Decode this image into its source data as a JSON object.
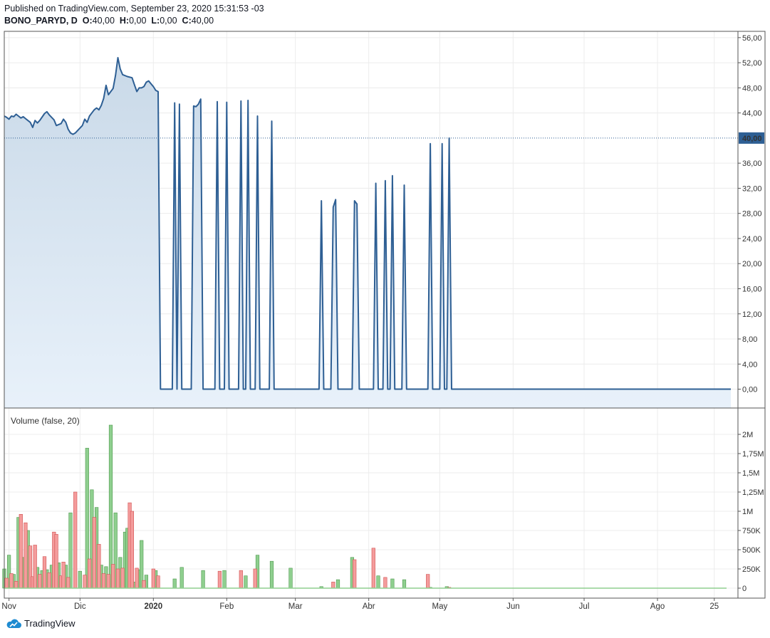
{
  "header": {
    "published": "Published on TradingView.com, September 23, 2020 15:31:53 -03",
    "symbol": "BONO_PARYD, D",
    "ohlc": [
      {
        "k": "O:",
        "v": "40,00"
      },
      {
        "k": "H:",
        "v": "0,00"
      },
      {
        "k": "L:",
        "v": "0,00"
      },
      {
        "k": "C:",
        "v": "40,00"
      }
    ]
  },
  "footer": {
    "brand": "TradingView",
    "logo_icon": "tradingview-cloud-icon"
  },
  "colors": {
    "line": "#2e5f94",
    "area_top": "#c9d9e8",
    "area_bottom": "#e8f1fa",
    "up": "#8fcf8f",
    "up_border": "#4f9a4f",
    "down": "#f49c9c",
    "down_border": "#d05050",
    "grid": "#ececec",
    "last_price_bg": "#2e5f94"
  },
  "chart_data": [
    {
      "type": "area",
      "symbol": "BONO_PARYD",
      "interval": "D",
      "last_value_label": "40,00",
      "y_axis": {
        "ticks": [
          "0,00",
          "4,00",
          "8,00",
          "12,00",
          "16,00",
          "20,00",
          "24,00",
          "28,00",
          "32,00",
          "36,00",
          "44,00",
          "48,00",
          "52,00",
          "56,00"
        ],
        "ylim": [
          -3,
          57
        ]
      },
      "x_axis": {
        "ticks": [
          {
            "label": "Nov",
            "date": "2019-11-01"
          },
          {
            "label": "Dic",
            "date": "2019-12-01"
          },
          {
            "label": "2020",
            "date": "2020-01-01"
          },
          {
            "label": "Feb",
            "date": "2020-02-01"
          },
          {
            "label": "Mar",
            "date": "2020-03-01"
          },
          {
            "label": "Abr",
            "date": "2020-04-01"
          },
          {
            "label": "May",
            "date": "2020-05-01"
          },
          {
            "label": "Jun",
            "date": "2020-06-01"
          },
          {
            "label": "Jul",
            "date": "2020-07-01"
          },
          {
            "label": "Ago",
            "date": "2020-08-01"
          },
          {
            "label": "25",
            "date": "2020-08-25"
          }
        ],
        "range": [
          "2019-10-30",
          "2020-09-04"
        ]
      },
      "price": [
        [
          "2019-10-30",
          43.5
        ],
        [
          "2019-10-31",
          43.3
        ],
        [
          "2019-11-01",
          43.0
        ],
        [
          "2019-11-02",
          43.5
        ],
        [
          "2019-11-03",
          43.4
        ],
        [
          "2019-11-04",
          43.8
        ],
        [
          "2019-11-05",
          43.5
        ],
        [
          "2019-11-06",
          43.2
        ],
        [
          "2019-11-07",
          43.4
        ],
        [
          "2019-11-08",
          43.1
        ],
        [
          "2019-11-10",
          42.5
        ],
        [
          "2019-11-11",
          41.7
        ],
        [
          "2019-11-12",
          42.8
        ],
        [
          "2019-11-13",
          42.4
        ],
        [
          "2019-11-14",
          42.8
        ],
        [
          "2019-11-16",
          43.9
        ],
        [
          "2019-11-17",
          44.2
        ],
        [
          "2019-11-18",
          43.7
        ],
        [
          "2019-11-20",
          42.9
        ],
        [
          "2019-11-21",
          42.0
        ],
        [
          "2019-11-23",
          42.3
        ],
        [
          "2019-11-24",
          43.0
        ],
        [
          "2019-11-25",
          42.5
        ],
        [
          "2019-11-26",
          41.4
        ],
        [
          "2019-11-27",
          40.8
        ],
        [
          "2019-11-28",
          40.6
        ],
        [
          "2019-11-29",
          40.8
        ],
        [
          "2019-11-30",
          41.2
        ],
        [
          "2019-12-02",
          42.0
        ],
        [
          "2019-12-03",
          43.0
        ],
        [
          "2019-12-04",
          42.5
        ],
        [
          "2019-12-05",
          43.5
        ],
        [
          "2019-12-07",
          44.5
        ],
        [
          "2019-12-08",
          44.8
        ],
        [
          "2019-12-09",
          44.5
        ],
        [
          "2019-12-10",
          45.2
        ],
        [
          "2019-12-11",
          46.3
        ],
        [
          "2019-12-12",
          48.4
        ],
        [
          "2019-12-13",
          46.9
        ],
        [
          "2019-12-15",
          47.9
        ],
        [
          "2019-12-16",
          50.0
        ],
        [
          "2019-12-17",
          52.8
        ],
        [
          "2019-12-18",
          51.0
        ],
        [
          "2019-12-19",
          50.1
        ],
        [
          "2019-12-21",
          49.8
        ],
        [
          "2019-12-23",
          49.6
        ],
        [
          "2019-12-24",
          48.5
        ],
        [
          "2019-12-25",
          47.4
        ],
        [
          "2019-12-26",
          48.0
        ],
        [
          "2019-12-27",
          48.0
        ],
        [
          "2019-12-28",
          48.2
        ],
        [
          "2019-12-29",
          48.9
        ],
        [
          "2019-12-30",
          49.1
        ],
        [
          "2020-01-01",
          48.2
        ],
        [
          "2020-01-02",
          47.6
        ],
        [
          "2020-01-03",
          47.4
        ],
        [
          "2020-01-04",
          0
        ],
        [
          "2020-01-09",
          0
        ],
        [
          "2020-01-10",
          45.6
        ],
        [
          "2020-01-11",
          0
        ],
        [
          "2020-01-12",
          45.4
        ],
        [
          "2020-01-13",
          0
        ],
        [
          "2020-01-17",
          0
        ],
        [
          "2020-01-18",
          45.1
        ],
        [
          "2020-01-19",
          45.0
        ],
        [
          "2020-01-20",
          45.4
        ],
        [
          "2020-01-21",
          46.2
        ],
        [
          "2020-01-22",
          0
        ],
        [
          "2020-01-27",
          0
        ],
        [
          "2020-01-28",
          45.8
        ],
        [
          "2020-01-29",
          0
        ],
        [
          "2020-01-31",
          0
        ],
        [
          "2020-02-01",
          45.7
        ],
        [
          "2020-02-02",
          0
        ],
        [
          "2020-02-06",
          0
        ],
        [
          "2020-02-07",
          45.9
        ],
        [
          "2020-02-08",
          0
        ],
        [
          "2020-02-09",
          0
        ],
        [
          "2020-02-10",
          46.0
        ],
        [
          "2020-02-11",
          0
        ],
        [
          "2020-02-13",
          0
        ],
        [
          "2020-02-14",
          43.5
        ],
        [
          "2020-02-15",
          0
        ],
        [
          "2020-02-19",
          0
        ],
        [
          "2020-02-20",
          42.7
        ],
        [
          "2020-02-21",
          0
        ],
        [
          "2020-03-11",
          0
        ],
        [
          "2020-03-12",
          30.0
        ],
        [
          "2020-03-13",
          0
        ],
        [
          "2020-03-16",
          0
        ],
        [
          "2020-03-17",
          29.0
        ],
        [
          "2020-03-18",
          30.2
        ],
        [
          "2020-03-19",
          0
        ],
        [
          "2020-03-25",
          0
        ],
        [
          "2020-03-26",
          30.0
        ],
        [
          "2020-03-27",
          29.5
        ],
        [
          "2020-03-28",
          0
        ],
        [
          "2020-04-03",
          0
        ],
        [
          "2020-04-04",
          32.8
        ],
        [
          "2020-04-05",
          0
        ],
        [
          "2020-04-07",
          0
        ],
        [
          "2020-04-08",
          33.2
        ],
        [
          "2020-04-09",
          0
        ],
        [
          "2020-04-10",
          0
        ],
        [
          "2020-04-11",
          34.0
        ],
        [
          "2020-04-12",
          0
        ],
        [
          "2020-04-15",
          0
        ],
        [
          "2020-04-16",
          32.5
        ],
        [
          "2020-04-17",
          0
        ],
        [
          "2020-04-26",
          0
        ],
        [
          "2020-04-27",
          39.1
        ],
        [
          "2020-04-28",
          0
        ],
        [
          "2020-05-01",
          0
        ],
        [
          "2020-05-02",
          39.1
        ],
        [
          "2020-05-03",
          0
        ],
        [
          "2020-05-04",
          0
        ],
        [
          "2020-05-05",
          40.0
        ],
        [
          "2020-05-06",
          0
        ],
        [
          "2020-09-01",
          0
        ]
      ]
    },
    {
      "type": "bar",
      "title": "Volume (false, 20)",
      "y_axis": {
        "ticks": [
          "0",
          "250K",
          "500K",
          "750K",
          "1M",
          "1,25M",
          "1,5M",
          "1,75M",
          "2M"
        ],
        "ylim": [
          0,
          2250000
        ]
      },
      "series": [
        {
          "name": "up",
          "color": "#8fcf8f",
          "values": [
            [
              "2019-10-30",
              250000
            ],
            [
              "2019-11-01",
              430000
            ],
            [
              "2019-11-03",
              180000
            ],
            [
              "2019-11-05",
              920000
            ],
            [
              "2019-11-07",
              400000
            ],
            [
              "2019-11-09",
              750000
            ],
            [
              "2019-11-13",
              270000
            ],
            [
              "2019-11-15",
              230000
            ],
            [
              "2019-11-17",
              240000
            ],
            [
              "2019-11-19",
              300000
            ],
            [
              "2019-11-22",
              330000
            ],
            [
              "2019-11-25",
              300000
            ],
            [
              "2019-11-27",
              980000
            ],
            [
              "2019-12-01",
              220000
            ],
            [
              "2019-12-04",
              1820000
            ],
            [
              "2019-12-06",
              1280000
            ],
            [
              "2019-12-08",
              1050000
            ],
            [
              "2019-12-10",
              300000
            ],
            [
              "2019-12-12",
              280000
            ],
            [
              "2019-12-14",
              2120000
            ],
            [
              "2019-12-16",
              980000
            ],
            [
              "2019-12-18",
              400000
            ],
            [
              "2019-12-20",
              730000
            ],
            [
              "2019-12-21",
              780000
            ],
            [
              "2019-12-24",
              80000
            ],
            [
              "2019-12-26",
              240000
            ],
            [
              "2019-12-27",
              620000
            ],
            [
              "2019-12-29",
              170000
            ],
            [
              "2020-01-02",
              230000
            ],
            [
              "2020-01-10",
              120000
            ],
            [
              "2020-01-13",
              270000
            ],
            [
              "2020-01-22",
              230000
            ],
            [
              "2020-01-31",
              230000
            ],
            [
              "2020-02-09",
              160000
            ],
            [
              "2020-02-14",
              430000
            ],
            [
              "2020-02-20",
              350000
            ],
            [
              "2020-02-28",
              260000
            ],
            [
              "2020-03-12",
              20000
            ],
            [
              "2020-03-19",
              110000
            ],
            [
              "2020-03-25",
              400000
            ],
            [
              "2020-04-05",
              160000
            ],
            [
              "2020-04-11",
              120000
            ],
            [
              "2020-04-16",
              110000
            ],
            [
              "2020-04-27",
              10000
            ],
            [
              "2020-05-04",
              20000
            ]
          ]
        },
        {
          "name": "down",
          "color": "#f49c9c",
          "values": [
            [
              "2019-10-31",
              130000
            ],
            [
              "2019-11-02",
              190000
            ],
            [
              "2019-11-04",
              90000
            ],
            [
              "2019-11-06",
              960000
            ],
            [
              "2019-11-08",
              850000
            ],
            [
              "2019-11-10",
              550000
            ],
            [
              "2019-11-11",
              150000
            ],
            [
              "2019-11-12",
              560000
            ],
            [
              "2019-11-14",
              180000
            ],
            [
              "2019-11-16",
              410000
            ],
            [
              "2019-11-18",
              200000
            ],
            [
              "2019-11-20",
              730000
            ],
            [
              "2019-11-21",
              700000
            ],
            [
              "2019-11-23",
              160000
            ],
            [
              "2019-11-24",
              340000
            ],
            [
              "2019-11-26",
              140000
            ],
            [
              "2019-11-29",
              1250000
            ],
            [
              "2019-12-03",
              170000
            ],
            [
              "2019-12-05",
              380000
            ],
            [
              "2019-12-07",
              920000
            ],
            [
              "2019-12-09",
              570000
            ],
            [
              "2019-12-11",
              190000
            ],
            [
              "2019-12-13",
              180000
            ],
            [
              "2019-12-15",
              310000
            ],
            [
              "2019-12-17",
              250000
            ],
            [
              "2019-12-19",
              260000
            ],
            [
              "2019-12-22",
              1110000
            ],
            [
              "2019-12-23",
              1000000
            ],
            [
              "2019-12-25",
              260000
            ],
            [
              "2019-12-28",
              100000
            ],
            [
              "2020-01-01",
              250000
            ],
            [
              "2020-01-03",
              160000
            ],
            [
              "2020-01-29",
              220000
            ],
            [
              "2020-02-07",
              230000
            ],
            [
              "2020-02-13",
              250000
            ],
            [
              "2020-03-17",
              80000
            ],
            [
              "2020-03-26",
              370000
            ],
            [
              "2020-04-03",
              520000
            ],
            [
              "2020-04-08",
              140000
            ],
            [
              "2020-04-26",
              180000
            ],
            [
              "2020-05-05",
              10000
            ]
          ]
        }
      ]
    }
  ]
}
